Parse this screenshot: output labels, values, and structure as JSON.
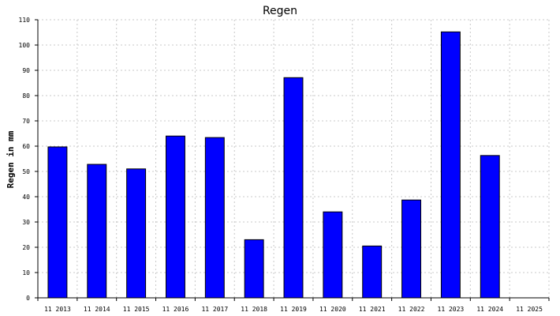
{
  "chart_data": {
    "type": "bar",
    "title": "Regen",
    "xlabel": "",
    "ylabel": "Regen in mm",
    "ylim": [
      0,
      110
    ],
    "yticks": [
      0,
      10,
      20,
      30,
      40,
      50,
      60,
      70,
      80,
      90,
      100,
      110
    ],
    "grid": true,
    "categories": [
      "11 2013",
      "11 2014",
      "11 2015",
      "11 2016",
      "11 2017",
      "11 2018",
      "11 2019",
      "11 2020",
      "11 2021",
      "11 2022",
      "11 2023",
      "11 2024",
      "11 2025"
    ],
    "values": [
      59.7,
      52.8,
      51.0,
      64.0,
      63.4,
      23.0,
      87.1,
      34.0,
      20.5,
      38.7,
      105.2,
      56.3,
      null
    ],
    "bar_color": "#0000ff"
  }
}
